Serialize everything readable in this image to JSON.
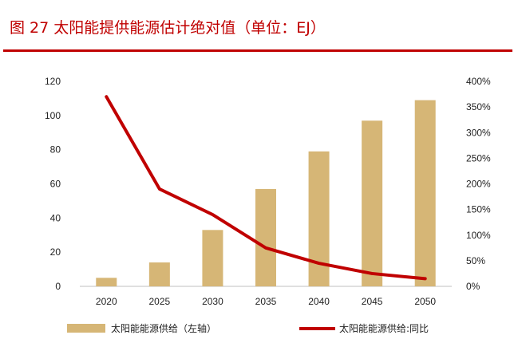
{
  "title": "图 27 太阳能提供能源估计绝对值（单位：EJ）",
  "colors": {
    "title": "#c00000",
    "bar": "#d6b676",
    "line": "#c00000"
  },
  "chart_data": {
    "type": "bar+line",
    "categories": [
      "2020",
      "2025",
      "2030",
      "2035",
      "2040",
      "2045",
      "2050"
    ],
    "series": [
      {
        "name": "太阳能能源供给（左轴）",
        "type": "bar",
        "axis": "left",
        "values": [
          5,
          14,
          33,
          57,
          79,
          97,
          109
        ]
      },
      {
        "name": "太阳能能源供给:同比",
        "type": "line",
        "axis": "right",
        "values": [
          370,
          190,
          140,
          75,
          45,
          25,
          15
        ]
      }
    ],
    "yleft": {
      "ticks": [
        "0",
        "20",
        "40",
        "60",
        "80",
        "100",
        "120"
      ],
      "lim": [
        0,
        120
      ]
    },
    "yright": {
      "ticks": [
        "0%",
        "50%",
        "100%",
        "150%",
        "200%",
        "250%",
        "300%",
        "350%",
        "400%"
      ],
      "lim": [
        0,
        400
      ]
    },
    "grid": false,
    "legend": "bottom"
  }
}
